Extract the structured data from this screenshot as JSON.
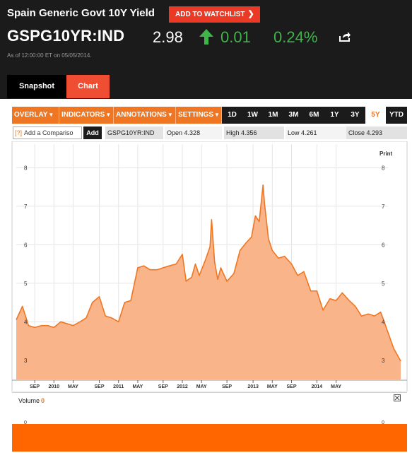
{
  "header": {
    "title": "Spain Generic Govt 10Y Yield",
    "watchlist_label": "ADD TO WATCHLIST",
    "ticker": "GSPG10YR:IND",
    "price": "2.98",
    "change": "0.01",
    "change_pct": "0.24%",
    "as_of": "As of 12:00:00 ET on 05/05/2014.",
    "accent_color": "#ef4e32",
    "positive_color": "#3fb449"
  },
  "tabs": [
    {
      "label": "Snapshot",
      "active": false
    },
    {
      "label": "Chart",
      "active": true
    }
  ],
  "toolbar": {
    "dropdowns": [
      "OVERLAY",
      "INDICATORS",
      "ANNOTATIONS",
      "SETTINGS"
    ],
    "ranges": [
      "1D",
      "1W",
      "1M",
      "3M",
      "6M",
      "1Y",
      "3Y",
      "5Y",
      "YTD"
    ],
    "active_range": "5Y"
  },
  "compare": {
    "placeholder": "Add a Compariso",
    "add_label": "Add",
    "symbol": "GSPG10YR:IND"
  },
  "stats": {
    "open_label": "Open",
    "open": "4.328",
    "high_label": "High",
    "high": "4.356",
    "low_label": "Low",
    "low": "4.261",
    "close_label": "Close",
    "close": "4.293"
  },
  "print_label": "Print",
  "volume": {
    "label": "Volume",
    "value": "0",
    "axis_value": "0"
  },
  "chart_data": {
    "type": "area",
    "title": "",
    "xlabel": "",
    "ylabel": "",
    "ylim": [
      2.5,
      8.5
    ],
    "y_ticks": [
      3,
      4,
      5,
      6,
      7,
      8
    ],
    "x_ticks": [
      "SEP",
      "2010",
      "MAY",
      "SEP",
      "2011",
      "MAY",
      "SEP",
      "2012",
      "MAY",
      "SEP",
      "2013",
      "MAY",
      "SEP",
      "2014",
      "MAY"
    ],
    "grid": true,
    "line_color": "#ef7622",
    "fill_color": "#f9b48a",
    "series": [
      {
        "x": [
          2009.34,
          2009.42,
          2009.5,
          2009.58,
          2009.67,
          2009.75,
          2009.83,
          2009.92,
          2010.0,
          2010.08,
          2010.17,
          2010.25,
          2010.33,
          2010.42,
          2010.5,
          2010.58,
          2010.67,
          2010.75,
          2010.83,
          2010.92,
          2011.0,
          2011.08,
          2011.17,
          2011.25,
          2011.33,
          2011.42,
          2011.5,
          2011.55,
          2011.58,
          2011.62,
          2011.67,
          2011.72,
          2011.75,
          2011.8,
          2011.86,
          2011.88,
          2011.92,
          2011.96,
          2012.0,
          2012.08,
          2012.17,
          2012.25,
          2012.33,
          2012.4,
          2012.45,
          2012.5,
          2012.55,
          2012.57,
          2012.62,
          2012.67,
          2012.75,
          2012.83,
          2012.92,
          2013.0,
          2013.08,
          2013.17,
          2013.25,
          2013.33,
          2013.42,
          2013.5,
          2013.58,
          2013.67,
          2013.75,
          2013.83,
          2013.92,
          2014.0,
          2014.08,
          2014.17,
          2014.25,
          2014.34
        ],
        "values": [
          4.05,
          4.4,
          3.9,
          3.85,
          3.9,
          3.9,
          3.85,
          4.0,
          3.95,
          3.9,
          4.0,
          4.1,
          4.5,
          4.65,
          4.15,
          4.1,
          4.0,
          4.5,
          4.55,
          5.4,
          5.45,
          5.35,
          5.35,
          5.4,
          5.45,
          5.5,
          5.75,
          5.05,
          5.1,
          5.15,
          5.5,
          5.2,
          5.35,
          5.6,
          5.95,
          6.65,
          5.55,
          5.1,
          5.4,
          5.05,
          5.25,
          5.85,
          6.05,
          6.2,
          6.75,
          6.6,
          7.55,
          7.05,
          6.15,
          5.85,
          5.65,
          5.7,
          5.5,
          5.2,
          5.3,
          4.8,
          4.8,
          4.3,
          4.6,
          4.55,
          4.75,
          4.55,
          4.4,
          4.15,
          4.2,
          4.15,
          4.25,
          3.75,
          3.3,
          2.98
        ]
      }
    ]
  }
}
